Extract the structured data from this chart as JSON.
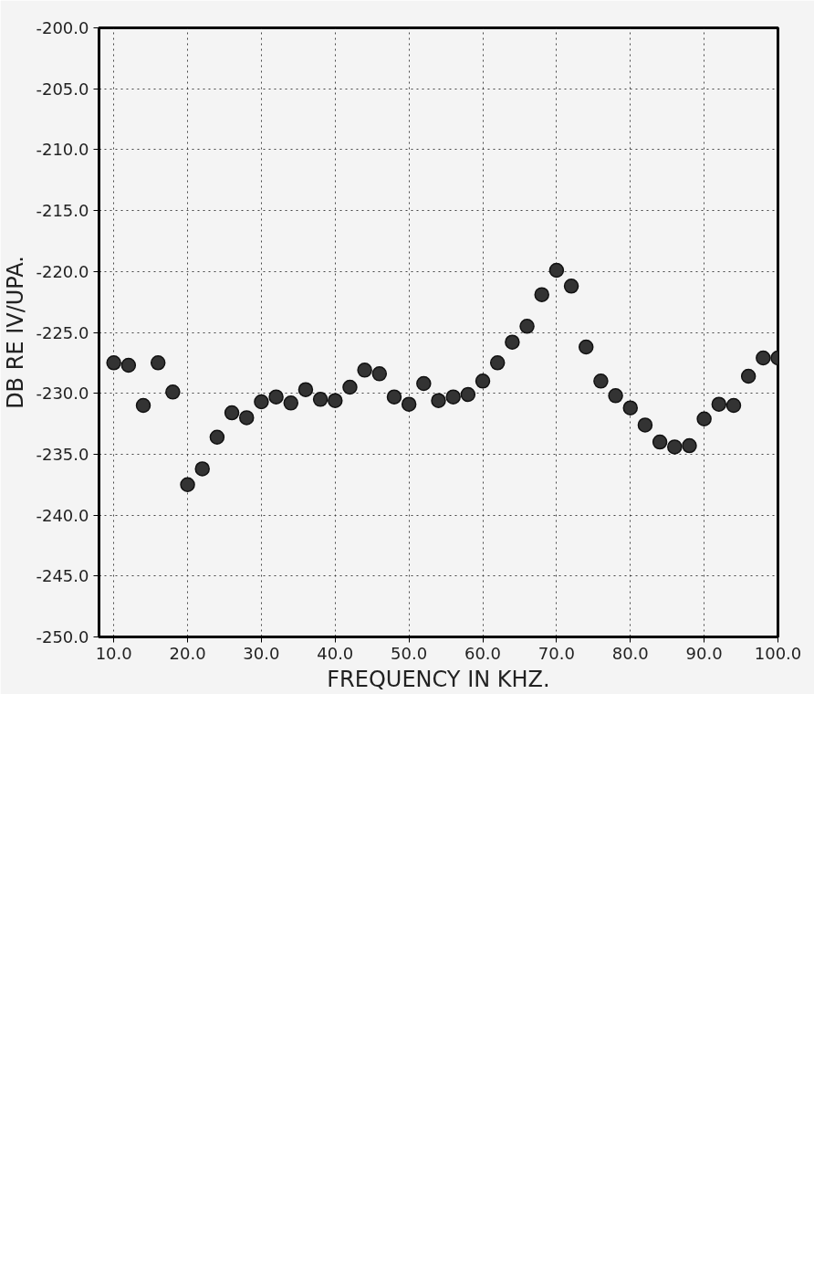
{
  "chart_data": {
    "type": "scatter",
    "xlabel": "FREQUENCY IN KHZ.",
    "ylabel": "DB RE IV/UPA.",
    "x": [
      10,
      12,
      14,
      16,
      18,
      20,
      22,
      24,
      26,
      28,
      30,
      32,
      34,
      36,
      38,
      40,
      42,
      44,
      46,
      48,
      50,
      52,
      54,
      56,
      58,
      60,
      62,
      64,
      66,
      68,
      70,
      72,
      74,
      76,
      78,
      80,
      82,
      84,
      86,
      88,
      90,
      92,
      94,
      96,
      98,
      100
    ],
    "values": [
      -227.5,
      -227.7,
      -231.0,
      -227.5,
      -229.9,
      -237.5,
      -236.2,
      -233.6,
      -231.6,
      -232.0,
      -230.7,
      -230.3,
      -230.8,
      -229.7,
      -230.5,
      -230.6,
      -229.5,
      -228.1,
      -228.4,
      -230.3,
      -230.9,
      -229.2,
      -230.6,
      -230.3,
      -230.1,
      -229.0,
      -227.5,
      -225.8,
      -224.5,
      -221.9,
      -219.9,
      -221.2,
      -226.2,
      -229.0,
      -230.2,
      -231.2,
      -232.6,
      -234.0,
      -234.4,
      -234.3,
      -232.1,
      -230.9,
      -231.0,
      -228.6,
      -227.1,
      -227.1
    ],
    "color": "#333333",
    "marker": "circle",
    "grid": true,
    "xlim": [
      8,
      100
    ],
    "xticks": [
      {
        "value": 10,
        "label": "10.0"
      },
      {
        "value": 20,
        "label": "20.0"
      },
      {
        "value": 30,
        "label": "30.0"
      },
      {
        "value": 40,
        "label": "40.0"
      },
      {
        "value": 50,
        "label": "50.0"
      },
      {
        "value": 60,
        "label": "60.0"
      },
      {
        "value": 70,
        "label": "70.0"
      },
      {
        "value": 80,
        "label": "80.0"
      },
      {
        "value": 90,
        "label": "90.0"
      },
      {
        "value": 100,
        "label": "100.0"
      }
    ],
    "ylim": [
      -250,
      -200
    ],
    "yticks": [
      {
        "value": -200,
        "label": "-200.0"
      },
      {
        "value": -205,
        "label": "-205.0"
      },
      {
        "value": -210,
        "label": "-210.0"
      },
      {
        "value": -215,
        "label": "-215.0"
      },
      {
        "value": -220,
        "label": "-220.0"
      },
      {
        "value": -225,
        "label": "-225.0"
      },
      {
        "value": -230,
        "label": "-230.0"
      },
      {
        "value": -235,
        "label": "-235.0"
      },
      {
        "value": -240,
        "label": "-240.0"
      },
      {
        "value": -245,
        "label": "-245.0"
      },
      {
        "value": -250,
        "label": "-250.0"
      }
    ]
  }
}
